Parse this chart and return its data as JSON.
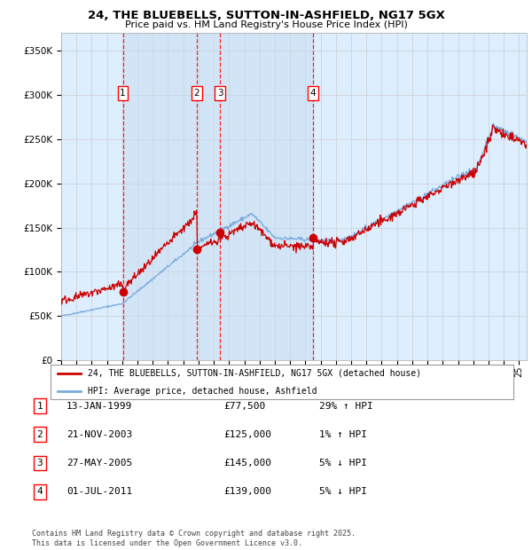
{
  "title_line1": "24, THE BLUEBELLS, SUTTON-IN-ASHFIELD, NG17 5GX",
  "title_line2": "Price paid vs. HM Land Registry's House Price Index (HPI)",
  "ytick_values": [
    0,
    50000,
    100000,
    150000,
    200000,
    250000,
    300000,
    350000
  ],
  "ylim": [
    0,
    370000
  ],
  "xlim_start": 1995.0,
  "xlim_end": 2025.5,
  "sale_points": [
    {
      "num": 1,
      "year": 1999.04,
      "price": 77500
    },
    {
      "num": 2,
      "year": 2003.89,
      "price": 125000
    },
    {
      "num": 3,
      "year": 2005.41,
      "price": 145000
    },
    {
      "num": 4,
      "year": 2011.5,
      "price": 139000
    }
  ],
  "legend_red": "24, THE BLUEBELLS, SUTTON-IN-ASHFIELD, NG17 5GX (detached house)",
  "legend_blue": "HPI: Average price, detached house, Ashfield",
  "table_rows": [
    [
      "1",
      "13-JAN-1999",
      "£77,500",
      "29% ↑ HPI"
    ],
    [
      "2",
      "21-NOV-2003",
      "£125,000",
      "1% ↑ HPI"
    ],
    [
      "3",
      "27-MAY-2005",
      "£145,000",
      "5% ↓ HPI"
    ],
    [
      "4",
      "01-JUL-2011",
      "£139,000",
      "5% ↓ HPI"
    ]
  ],
  "footer": "Contains HM Land Registry data © Crown copyright and database right 2025.\nThis data is licensed under the Open Government Licence v3.0.",
  "bg_color": "#ddeeff",
  "line_red": "#cc0000",
  "line_blue": "#7aaadd",
  "grid_color": "#cccccc"
}
